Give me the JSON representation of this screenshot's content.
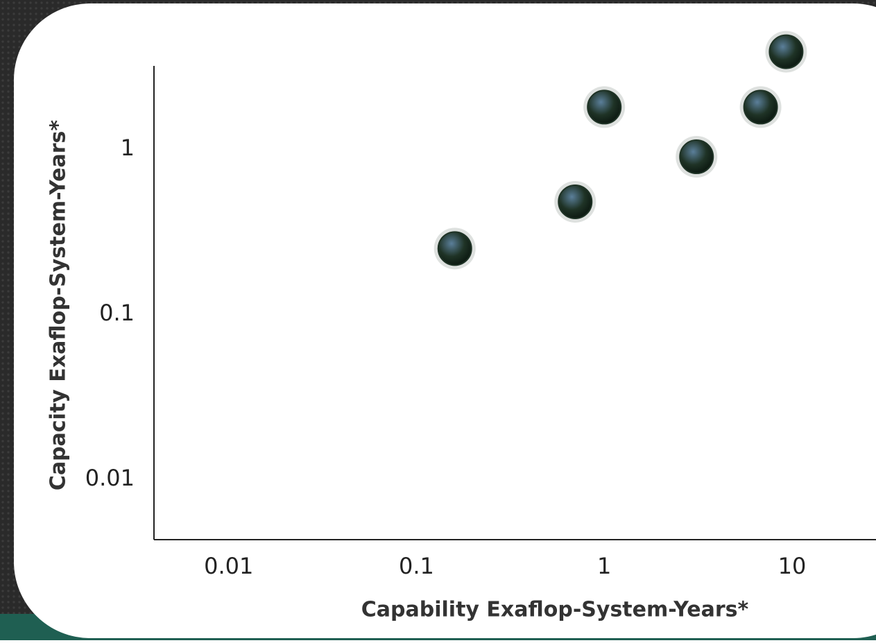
{
  "chart_data": {
    "type": "scatter",
    "x_label": "Capability Exaflop-System-Years*",
    "y_label": "Capacity Exaflop-System-Years*",
    "x": [
      0.16,
      0.7,
      1.0,
      3.1,
      6.8,
      9.3
    ],
    "series": [
      {
        "color": "#1f3326",
        "values": [
          0.25,
          0.48,
          1.8,
          0.9,
          1.8,
          3.9
        ]
      }
    ],
    "x_log": true,
    "y_log": true,
    "xlim": [
      0.004,
      28
    ],
    "ylim": [
      0.0043,
      3.2
    ],
    "xticks": [
      0.01,
      0.1,
      1,
      10
    ],
    "yticks": [
      0.01,
      0.1,
      1
    ]
  }
}
